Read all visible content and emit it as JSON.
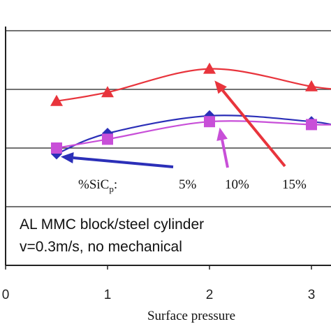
{
  "chart_data": {
    "type": "line",
    "x": [
      0.5,
      1,
      2,
      3,
      3.3
    ],
    "xlim": [
      0,
      3.3
    ],
    "ylim": [
      0,
      4.3
    ],
    "x_ticks": [
      "0",
      "1",
      "2",
      "3"
    ],
    "xlabel": "Surface pressure",
    "grid": "horizontal",
    "series": [
      {
        "name": "5%",
        "color": "#2b2fb8",
        "marker": "diamond",
        "values": [
          1.9,
          2.25,
          2.55,
          2.45,
          2.35
        ]
      },
      {
        "name": "10%",
        "color": "#c84fd8",
        "marker": "square",
        "values": [
          2.0,
          2.15,
          2.45,
          2.4,
          2.4
        ]
      },
      {
        "name": "15%",
        "color": "#e8343c",
        "marker": "triangle",
        "values": [
          2.8,
          2.95,
          3.35,
          3.05,
          3.0
        ]
      }
    ],
    "legend": {
      "title": "%SiC",
      "subscript": "p",
      "suffix": ":"
    },
    "annotation": {
      "line1": "AL MMC block/steel cylinder",
      "line2": "v=0.3m/s, no mechanical"
    }
  }
}
